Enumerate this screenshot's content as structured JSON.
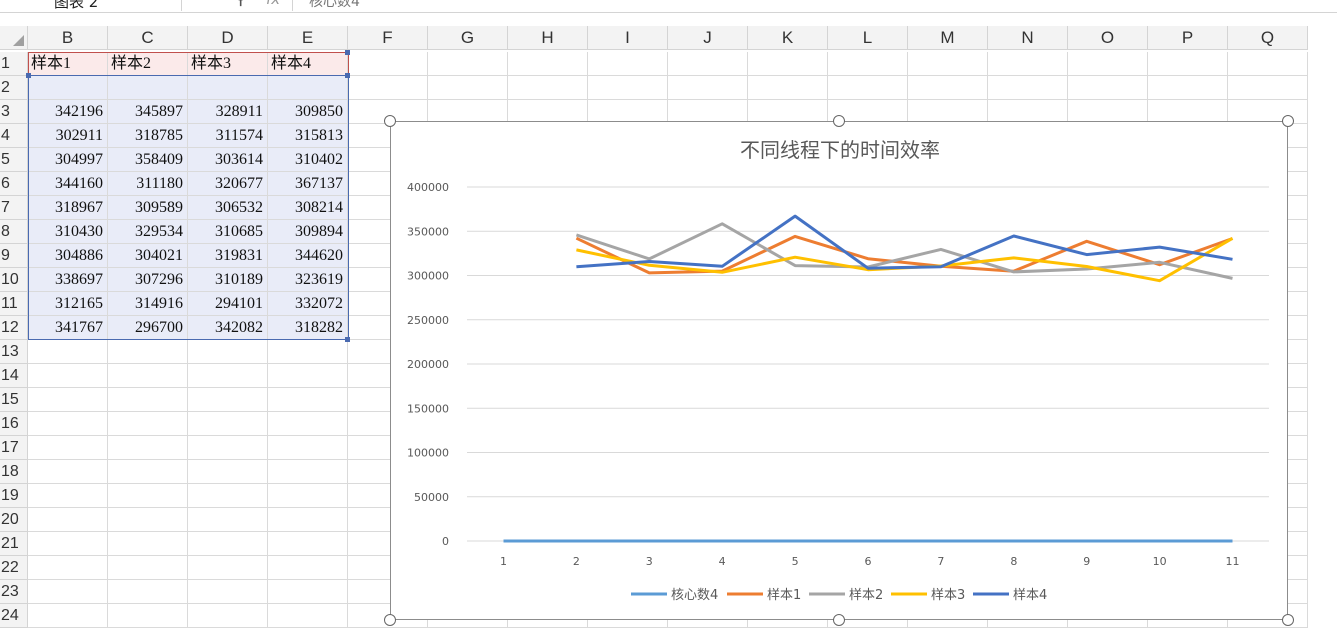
{
  "formula_bar": {
    "name_box": "图表 2",
    "fx": "fx",
    "content": "核心数4"
  },
  "columns": [
    "B",
    "C",
    "D",
    "E",
    "F",
    "G",
    "H",
    "I",
    "J",
    "K",
    "L",
    "M",
    "N",
    "O",
    "P",
    "Q"
  ],
  "rows": [
    "1",
    "2",
    "3",
    "4",
    "5",
    "6",
    "7",
    "8",
    "9",
    "10",
    "11",
    "12",
    "13",
    "14",
    "15",
    "16",
    "17",
    "18",
    "19",
    "20",
    "21",
    "22",
    "23",
    "24"
  ],
  "table": {
    "headers": [
      "样本1",
      "样本2",
      "样本3",
      "样本4"
    ],
    "rows": [
      [
        "",
        "",
        "",
        ""
      ],
      [
        "342196",
        "345897",
        "328911",
        "309850"
      ],
      [
        "302911",
        "318785",
        "311574",
        "315813"
      ],
      [
        "304997",
        "358409",
        "303614",
        "310402"
      ],
      [
        "344160",
        "311180",
        "320677",
        "367137"
      ],
      [
        "318967",
        "309589",
        "306532",
        "308214"
      ],
      [
        "310430",
        "329534",
        "310685",
        "309894"
      ],
      [
        "304886",
        "304021",
        "319831",
        "344620"
      ],
      [
        "338697",
        "307296",
        "310189",
        "323619"
      ],
      [
        "312165",
        "314916",
        "294101",
        "332072"
      ],
      [
        "341767",
        "296700",
        "342082",
        "318282"
      ]
    ]
  },
  "chart_data": {
    "type": "line",
    "title": "不同线程下的时间效率",
    "x": [
      "1",
      "2",
      "3",
      "4",
      "5",
      "6",
      "7",
      "8",
      "9",
      "10",
      "11"
    ],
    "y_ticks": [
      "0",
      "50000",
      "100000",
      "150000",
      "200000",
      "250000",
      "300000",
      "350000",
      "400000"
    ],
    "ylim": [
      0,
      400000
    ],
    "legend_position": "bottom",
    "series": [
      {
        "name": "核心数4",
        "color": "#5b9bd5",
        "values": [
          0,
          0,
          0,
          0,
          0,
          0,
          0,
          0,
          0,
          0,
          0
        ]
      },
      {
        "name": "样本1",
        "color": "#ed7d31",
        "values": [
          null,
          342196,
          302911,
          304997,
          344160,
          318967,
          310430,
          304886,
          338697,
          312165,
          341767
        ]
      },
      {
        "name": "样本2",
        "color": "#a5a5a5",
        "values": [
          null,
          345897,
          318785,
          358409,
          311180,
          309589,
          329534,
          304021,
          307296,
          314916,
          296700
        ]
      },
      {
        "name": "样本3",
        "color": "#ffc000",
        "values": [
          null,
          328911,
          311574,
          303614,
          320677,
          306532,
          310685,
          319831,
          310189,
          294101,
          342082
        ]
      },
      {
        "name": "样本4",
        "color": "#4472c4",
        "values": [
          null,
          309850,
          315813,
          310402,
          367137,
          308214,
          309894,
          344620,
          323619,
          332072,
          318282
        ]
      }
    ]
  }
}
